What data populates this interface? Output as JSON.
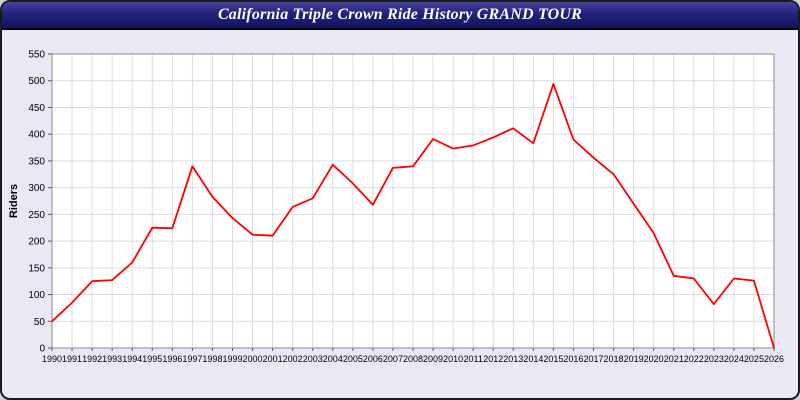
{
  "header": {
    "title": "California Triple Crown Ride History GRAND TOUR"
  },
  "colors": {
    "page_bg": "#e9e9f6",
    "header_bg": "#22227c",
    "plot_bg": "#ffffff",
    "grid": "#dcdcdc",
    "axis": "#555555",
    "line": "#ff0000",
    "title_text": "#ffffff"
  },
  "chart_data": {
    "type": "line",
    "title": "California Triple Crown Ride History GRAND TOUR",
    "xlabel": "",
    "ylabel": "Riders",
    "ylim": [
      0,
      550
    ],
    "ytick_step": 50,
    "grid": true,
    "legend": "none",
    "line_color": "#ff0000",
    "x": [
      1990,
      1991,
      1992,
      1993,
      1994,
      1995,
      1996,
      1997,
      1998,
      1999,
      2000,
      2001,
      2002,
      2003,
      2004,
      2005,
      2006,
      2007,
      2008,
      2009,
      2010,
      2011,
      2012,
      2013,
      2014,
      2015,
      2016,
      2017,
      2018,
      2019,
      2020,
      2021,
      2022,
      2023,
      2024,
      2025,
      2026
    ],
    "values": [
      50,
      85,
      125,
      127,
      160,
      225,
      224,
      340,
      283,
      243,
      212,
      210,
      264,
      280,
      343,
      308,
      268,
      337,
      340,
      391,
      373,
      379,
      394,
      411,
      383,
      494,
      390,
      356,
      325,
      270,
      215,
      135,
      130,
      82,
      130,
      126,
      0
    ]
  }
}
